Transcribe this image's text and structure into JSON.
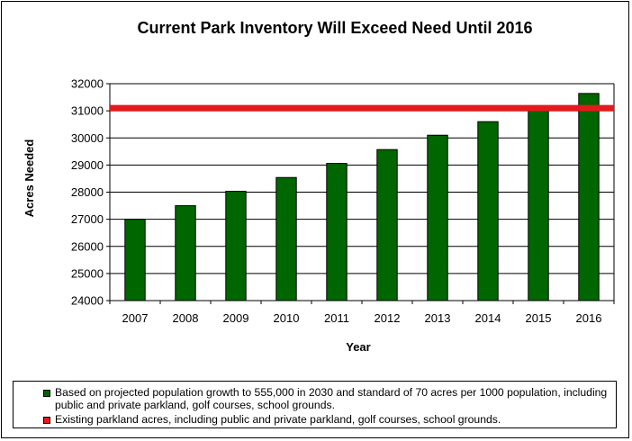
{
  "chart_data": {
    "type": "bar",
    "title": "Current Park Inventory Will Exceed Need Until 2016",
    "xlabel": "Year",
    "ylabel": "Acres Needed",
    "categories": [
      "2007",
      "2008",
      "2009",
      "2010",
      "2011",
      "2012",
      "2013",
      "2014",
      "2015",
      "2016"
    ],
    "series": [
      {
        "name": "Based on projected population growth to 555,000 in 2030 and standard of 70 acres per 1000 population, including public and private parkland, golf courses, school grounds.",
        "type": "bar",
        "color": "#006600",
        "values": [
          27000,
          27500,
          28030,
          28540,
          29060,
          29570,
          30100,
          30600,
          31130,
          31640
        ]
      },
      {
        "name": "Existing parkland acres, including public and private parkland, golf courses, school grounds.",
        "type": "line",
        "color": "#e31a1c",
        "value": 31100
      }
    ],
    "ylim": [
      24000,
      32000
    ],
    "yticks": [
      24000,
      25000,
      26000,
      27000,
      28000,
      29000,
      30000,
      31000,
      32000
    ],
    "grid": "horizontal",
    "legend": "bottom"
  }
}
